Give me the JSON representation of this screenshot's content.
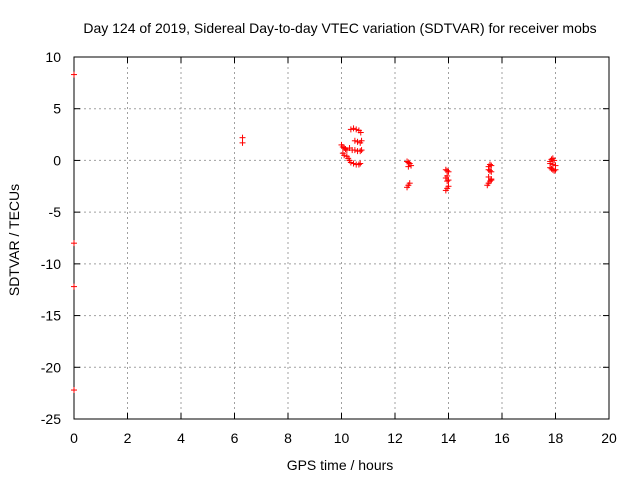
{
  "chart_data": {
    "type": "scatter",
    "title": "Day 124 of 2019, Sidereal Day-to-day VTEC variation (SDTVAR) for receiver mobs",
    "xlabel": "GPS time / hours",
    "ylabel": "SDTVAR / TECUs",
    "xlim": [
      0,
      20
    ],
    "ylim": [
      -25,
      10
    ],
    "grid": true,
    "x_ticks": [
      0,
      2,
      4,
      6,
      8,
      10,
      12,
      14,
      16,
      18,
      20
    ],
    "y_ticks": [
      10,
      5,
      0,
      -5,
      -10,
      -15,
      -20,
      -25
    ],
    "marker": "plus",
    "marker_color": "#ff0000",
    "series": [
      {
        "name": "SDTVAR",
        "points": [
          [
            0.0,
            8.3
          ],
          [
            0.0,
            -8.0
          ],
          [
            0.0,
            -12.2
          ],
          [
            0.0,
            -22.2
          ],
          [
            6.3,
            2.2
          ],
          [
            6.3,
            1.7
          ],
          [
            10.0,
            1.5
          ],
          [
            10.05,
            1.3
          ],
          [
            10.1,
            1.2
          ],
          [
            10.15,
            1.1
          ],
          [
            10.2,
            1.0
          ],
          [
            10.05,
            0.7
          ],
          [
            10.1,
            0.5
          ],
          [
            10.2,
            0.4
          ],
          [
            10.25,
            0.2
          ],
          [
            10.3,
            0.0
          ],
          [
            10.35,
            -0.2
          ],
          [
            10.45,
            -0.3
          ],
          [
            10.55,
            -0.4
          ],
          [
            10.65,
            -0.4
          ],
          [
            10.7,
            -0.3
          ],
          [
            10.3,
            1.2
          ],
          [
            10.4,
            1.0
          ],
          [
            10.5,
            1.0
          ],
          [
            10.6,
            0.9
          ],
          [
            10.7,
            0.9
          ],
          [
            10.75,
            1.0
          ],
          [
            10.5,
            1.9
          ],
          [
            10.6,
            1.8
          ],
          [
            10.7,
            1.7
          ],
          [
            10.75,
            1.9
          ],
          [
            10.35,
            3.0
          ],
          [
            10.45,
            3.1
          ],
          [
            10.55,
            3.0
          ],
          [
            10.65,
            2.9
          ],
          [
            10.72,
            2.7
          ],
          [
            12.45,
            -0.1
          ],
          [
            12.5,
            -0.2
          ],
          [
            12.55,
            -0.3
          ],
          [
            12.6,
            -0.5
          ],
          [
            12.5,
            -0.6
          ],
          [
            12.45,
            -2.6
          ],
          [
            12.5,
            -2.4
          ],
          [
            12.55,
            -2.2
          ],
          [
            13.9,
            -0.9
          ],
          [
            13.95,
            -1.0
          ],
          [
            14.0,
            -1.1
          ],
          [
            13.95,
            -1.5
          ],
          [
            13.9,
            -1.7
          ],
          [
            14.0,
            -1.9
          ],
          [
            13.95,
            -2.0
          ],
          [
            13.9,
            -2.9
          ],
          [
            13.95,
            -2.7
          ],
          [
            14.0,
            -2.5
          ],
          [
            15.5,
            -0.6
          ],
          [
            15.55,
            -0.4
          ],
          [
            15.6,
            -0.5
          ],
          [
            15.5,
            -0.9
          ],
          [
            15.55,
            -1.0
          ],
          [
            15.6,
            -1.1
          ],
          [
            15.5,
            -1.6
          ],
          [
            15.6,
            -1.8
          ],
          [
            15.45,
            -2.4
          ],
          [
            15.5,
            -2.2
          ],
          [
            15.55,
            -2.0
          ],
          [
            15.6,
            -1.9
          ],
          [
            17.8,
            -0.1
          ],
          [
            17.85,
            0.1
          ],
          [
            17.9,
            0.2
          ],
          [
            17.95,
            0.0
          ],
          [
            17.8,
            -0.3
          ],
          [
            17.9,
            -0.4
          ],
          [
            18.0,
            -0.5
          ],
          [
            17.8,
            -0.7
          ],
          [
            17.85,
            -0.8
          ],
          [
            17.9,
            -0.9
          ],
          [
            17.95,
            -1.0
          ],
          [
            18.0,
            -0.9
          ]
        ]
      }
    ]
  }
}
